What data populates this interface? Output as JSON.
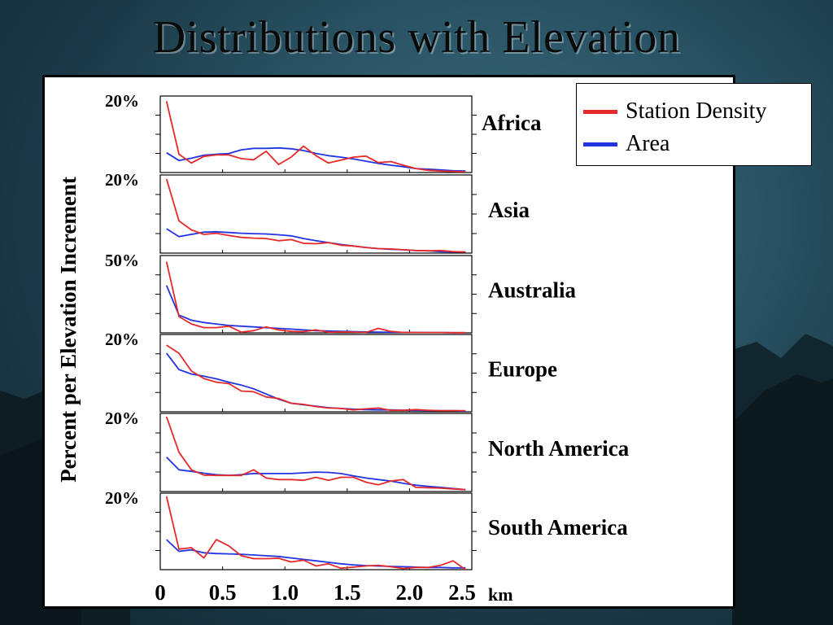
{
  "slide": {
    "title": "Distributions with Elevation"
  },
  "chart_data": {
    "type": "line",
    "ylabel": "Percent per Elevation Increment",
    "xlabel": "km",
    "x_ticks": [
      "0",
      "0.5",
      "1.0",
      "1.5",
      "2.0",
      "2.5"
    ],
    "xlim": [
      0,
      2.5
    ],
    "legend": {
      "placement": "top-right",
      "entries": [
        {
          "name": "Station Density",
          "color": "#e52a2a"
        },
        {
          "name": "Area",
          "color": "#2233e0"
        }
      ]
    },
    "x": [
      0.05,
      0.15,
      0.25,
      0.35,
      0.45,
      0.55,
      0.65,
      0.75,
      0.85,
      0.95,
      1.05,
      1.15,
      1.25,
      1.35,
      1.45,
      1.55,
      1.65,
      1.75,
      1.85,
      1.95,
      2.05,
      2.15,
      2.25,
      2.35,
      2.45
    ],
    "panels": [
      {
        "region": "Africa",
        "y_label": "20%",
        "ymax": 20,
        "series": [
          {
            "name": "Station Density",
            "values": [
              19.5,
              5.0,
              2.6,
              4.4,
              4.8,
              4.8,
              3.8,
              3.5,
              5.8,
              2.2,
              4.2,
              7.2,
              4.6,
              2.6,
              3.4,
              4.2,
              4.5,
              2.7,
              3.0,
              2.0,
              1.1,
              0.6,
              0.4,
              0.3,
              0.2
            ]
          },
          {
            "name": "Area",
            "values": [
              5.4,
              3.3,
              3.9,
              4.7,
              5.0,
              5.2,
              6.2,
              6.6,
              6.6,
              6.7,
              6.5,
              6.0,
              5.2,
              4.6,
              4.2,
              3.7,
              3.1,
              2.5,
              2.0,
              1.6,
              1.1,
              0.9,
              0.7,
              0.5,
              0.4
            ]
          }
        ]
      },
      {
        "region": "Asia",
        "y_label": "20%",
        "ymax": 20,
        "series": [
          {
            "name": "Station Density",
            "values": [
              19.8,
              8.6,
              6.2,
              5.0,
              5.3,
              4.7,
              4.2,
              4.0,
              3.9,
              3.3,
              3.6,
              2.6,
              2.5,
              2.8,
              2.1,
              1.9,
              1.5,
              1.2,
              1.1,
              0.9,
              0.7,
              0.6,
              0.7,
              0.4,
              0.3
            ]
          },
          {
            "name": "Area",
            "values": [
              6.5,
              4.4,
              5.0,
              5.6,
              5.7,
              5.5,
              5.3,
              5.2,
              5.1,
              4.9,
              4.6,
              3.9,
              3.3,
              2.8,
              2.3,
              1.9,
              1.5,
              1.2,
              1.0,
              0.9,
              0.7,
              0.6,
              0.4,
              0.3,
              0.3
            ]
          }
        ]
      },
      {
        "region": "Australia",
        "y_label": "50%",
        "ymax": 50,
        "series": [
          {
            "name": "Station Density",
            "values": [
              48.0,
              11.0,
              6.0,
              3.5,
              3.5,
              4.5,
              0.5,
              1.5,
              4.0,
              2.0,
              1.0,
              0.8,
              2.0,
              0.4,
              0.6,
              0.5,
              0.3,
              3.0,
              1.0,
              0.3,
              0.2,
              0.2,
              0.2,
              0.1,
              0.1
            ]
          },
          {
            "name": "Area",
            "values": [
              32.0,
              12.0,
              8.5,
              7.0,
              6.0,
              5.0,
              4.5,
              4.0,
              3.5,
              3.0,
              2.5,
              2.0,
              1.5,
              1.2,
              1.0,
              0.8,
              0.6,
              0.5,
              0.4,
              0.3,
              0.3,
              0.2,
              0.2,
              0.1,
              0.1
            ]
          }
        ]
      },
      {
        "region": "Europe",
        "y_label": "20%",
        "ymax": 20,
        "series": [
          {
            "name": "Station Density",
            "values": [
              18.0,
              15.8,
              11.0,
              9.0,
              8.0,
              7.6,
              5.6,
              5.4,
              4.0,
              3.6,
              2.3,
              2.0,
              1.4,
              1.0,
              0.9,
              0.5,
              0.8,
              1.0,
              0.4,
              0.4,
              0.6,
              0.4,
              0.3,
              0.3,
              0.3
            ]
          },
          {
            "name": "Area",
            "values": [
              15.8,
              11.4,
              10.2,
              9.6,
              8.9,
              8.0,
              7.2,
              6.2,
              4.8,
              3.4,
              2.3,
              1.9,
              1.5,
              1.1,
              0.9,
              0.7,
              0.6,
              0.5,
              0.5,
              0.4,
              0.4,
              0.3,
              0.3,
              0.3,
              0.2
            ]
          }
        ]
      },
      {
        "region": "North America",
        "y_label": "20%",
        "ymax": 20,
        "series": [
          {
            "name": "Station Density",
            "values": [
              20.0,
              10.5,
              5.8,
              4.4,
              4.3,
              4.3,
              4.3,
              5.8,
              3.6,
              3.2,
              3.2,
              3.0,
              3.8,
              3.0,
              3.8,
              3.8,
              2.5,
              1.8,
              2.8,
              3.2,
              1.1,
              1.0,
              0.9,
              0.7,
              0.5
            ]
          },
          {
            "name": "Area",
            "values": [
              9.2,
              5.8,
              5.4,
              4.9,
              4.5,
              4.3,
              4.5,
              4.8,
              4.8,
              4.8,
              4.8,
              5.0,
              5.2,
              5.1,
              4.8,
              4.2,
              3.6,
              3.2,
              2.8,
              2.2,
              1.7,
              1.4,
              1.1,
              0.8,
              0.5
            ]
          }
        ]
      },
      {
        "region": "South America",
        "y_label": "20%",
        "ymax": 20,
        "series": [
          {
            "name": "Station Density",
            "values": [
              20.0,
              5.6,
              6.0,
              3.2,
              8.2,
              6.5,
              3.8,
              3.0,
              3.0,
              3.1,
              2.1,
              2.6,
              1.0,
              1.6,
              0.4,
              0.7,
              1.0,
              1.2,
              0.8,
              0.3,
              0.6,
              0.6,
              1.2,
              2.4,
              0.0
            ]
          },
          {
            "name": "Area",
            "values": [
              8.2,
              5.0,
              5.4,
              4.6,
              4.4,
              4.3,
              4.2,
              4.0,
              3.8,
              3.6,
              3.2,
              2.8,
              2.4,
              2.0,
              1.6,
              1.3,
              1.1,
              1.0,
              0.9,
              0.8,
              0.7,
              0.6,
              0.6,
              0.5,
              0.5
            ]
          }
        ]
      }
    ]
  }
}
